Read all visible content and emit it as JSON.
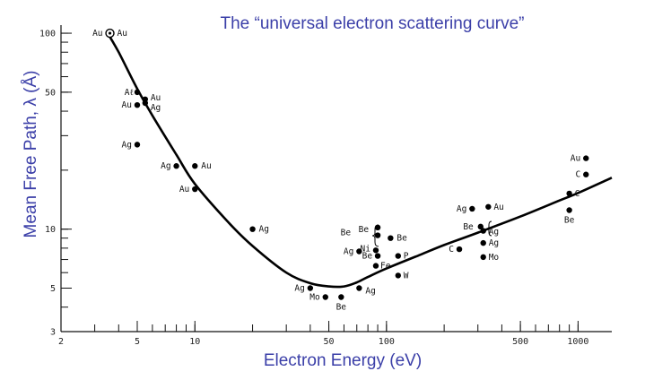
{
  "chart_data": {
    "type": "scatter",
    "title": "The “universal electron scattering curve”",
    "xlabel": "Electron Energy (eV)",
    "ylabel": "Mean Free Path, λ (Å)",
    "xscale": "log",
    "yscale": "log",
    "xlim": [
      2,
      1500
    ],
    "ylim": [
      3,
      110
    ],
    "x_ticks": [
      {
        "value": 2,
        "label": "2"
      },
      {
        "value": 5,
        "label": "5"
      },
      {
        "value": 10,
        "label": "10"
      },
      {
        "value": 50,
        "label": "50"
      },
      {
        "value": 100,
        "label": "100"
      },
      {
        "value": 500,
        "label": "500"
      },
      {
        "value": 1000,
        "label": "1000"
      }
    ],
    "y_ticks": [
      {
        "value": 3,
        "label": "3"
      },
      {
        "value": 5,
        "label": "5"
      },
      {
        "value": 10,
        "label": "10"
      },
      {
        "value": 50,
        "label": "50"
      },
      {
        "value": 100,
        "label": "100"
      }
    ],
    "curve": {
      "name": "universal curve",
      "x": [
        3.5,
        4,
        5,
        6,
        8,
        10,
        15,
        20,
        30,
        40,
        50,
        60,
        70,
        80,
        100,
        150,
        200,
        300,
        500,
        800,
        1000,
        1500
      ],
      "y": [
        100,
        80,
        52,
        38,
        24,
        17,
        10.8,
        8.2,
        6.0,
        5.3,
        5.1,
        5.1,
        5.35,
        5.7,
        6.3,
        7.4,
        8.3,
        9.6,
        11.6,
        14,
        15.3,
        18.3
      ]
    },
    "points": [
      {
        "label": "Au",
        "x": 3.6,
        "y": 100,
        "marker": "ring"
      },
      {
        "label": "Aℓ",
        "x": 5.0,
        "y": 50
      },
      {
        "label": "Au",
        "x": 5.5,
        "y": 46
      },
      {
        "label": "Ag",
        "x": 5.5,
        "y": 44
      },
      {
        "label": "Au",
        "x": 5.0,
        "y": 43
      },
      {
        "label": "Ag",
        "x": 5.0,
        "y": 27
      },
      {
        "label": "Ag",
        "x": 8.0,
        "y": 21
      },
      {
        "label": "Au",
        "x": 10.0,
        "y": 21
      },
      {
        "label": "Au",
        "x": 10.0,
        "y": 16
      },
      {
        "label": "Ag",
        "x": 20.0,
        "y": 10
      },
      {
        "label": "Ag",
        "x": 40.0,
        "y": 5
      },
      {
        "label": "Mo",
        "x": 48.0,
        "y": 4.5
      },
      {
        "label": "Be",
        "x": 58.0,
        "y": 4.5
      },
      {
        "label": "Ag",
        "x": 72.0,
        "y": 5
      },
      {
        "label": "Ag",
        "x": 72.0,
        "y": 7.7
      },
      {
        "label": "Ni",
        "x": 88.0,
        "y": 7.8
      },
      {
        "label": "Be",
        "x": 90.0,
        "y": 7.3
      },
      {
        "label": "Be",
        "x": 90.0,
        "y": 10.2
      },
      {
        "label": "Be",
        "x": 90.0,
        "y": 9.3
      },
      {
        "label": "Be",
        "x": 105.0,
        "y": 9.0
      },
      {
        "label": "P",
        "x": 115.0,
        "y": 7.3
      },
      {
        "label": "Fe",
        "x": 88.0,
        "y": 6.5
      },
      {
        "label": "W",
        "x": 115.0,
        "y": 5.8
      },
      {
        "label": "Ag",
        "x": 280.0,
        "y": 12.7
      },
      {
        "label": "Au",
        "x": 340.0,
        "y": 13
      },
      {
        "label": "Be",
        "x": 310.0,
        "y": 10.3
      },
      {
        "label": "Ag",
        "x": 320.0,
        "y": 9.8
      },
      {
        "label": "Ag",
        "x": 320.0,
        "y": 8.5
      },
      {
        "label": "C",
        "x": 240.0,
        "y": 7.9
      },
      {
        "label": "Mo",
        "x": 320.0,
        "y": 7.2
      },
      {
        "label": "Au",
        "x": 1100.0,
        "y": 23
      },
      {
        "label": "C",
        "x": 1100.0,
        "y": 19
      },
      {
        "label": "C",
        "x": 900.0,
        "y": 15.2
      },
      {
        "label": "Be",
        "x": 900.0,
        "y": 12.5
      }
    ]
  }
}
